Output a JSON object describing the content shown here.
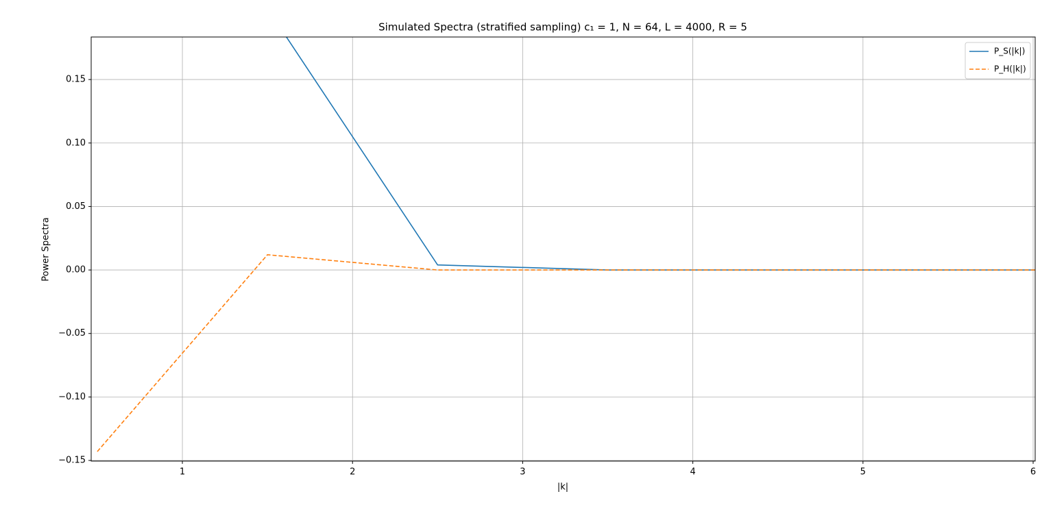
{
  "chart_data": {
    "type": "line",
    "title": "Simulated Spectra (stratified sampling)  c₁ = 1, N = 64, L = 4000, R = 5",
    "x_label": "|k|",
    "y_label": "Power Spectra",
    "x": [
      0.5,
      1.5,
      2.5,
      3.5,
      4.5,
      5.5,
      6.5
    ],
    "series": [
      {
        "name": "P_S(|k|)",
        "color": "#1f77b4",
        "dash": false,
        "values": [
          null,
          0.206,
          0.004,
          0,
          0,
          0,
          0
        ]
      },
      {
        "name": "P_H(|k|)",
        "color": "#ff7f0e",
        "dash": true,
        "values": [
          -0.143,
          0.012,
          0,
          0,
          0,
          0,
          0
        ]
      }
    ],
    "xlim": [
      0.464,
      6.012
    ],
    "ylim": [
      -0.1505,
      0.1835
    ],
    "xticks": [
      1,
      2,
      3,
      4,
      5,
      6
    ],
    "yticks": [
      {
        "value": -0.15,
        "label": "−0.15"
      },
      {
        "value": -0.1,
        "label": "−0.10"
      },
      {
        "value": -0.05,
        "label": "−0.05"
      },
      {
        "value": 0,
        "label": "0.00"
      },
      {
        "value": 0.05,
        "label": "0.05"
      },
      {
        "value": 0.1,
        "label": "0.10"
      },
      {
        "value": 0.15,
        "label": "0.15"
      }
    ],
    "grid": true,
    "legend": "upper right"
  }
}
